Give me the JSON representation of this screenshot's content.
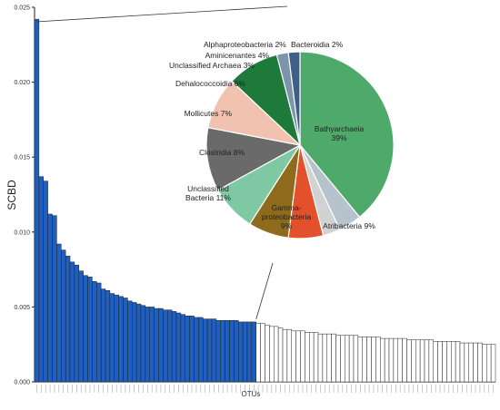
{
  "chart_data": [
    {
      "type": "bar",
      "xlabel": "OTUs",
      "ylabel": "SCBD",
      "ylim": [
        0,
        0.025
      ],
      "yticks": [
        "0.000",
        "0.005",
        "0.010",
        "0.015",
        "0.020",
        "0.025"
      ],
      "colors": {
        "highlighted": "#1f5fbf",
        "other": "#ffffff",
        "edge": "#222222"
      },
      "series": [
        {
          "values": [
            0.0242,
            0.0137,
            0.0134,
            0.0112,
            0.0111,
            0.0092,
            0.0088,
            0.0084,
            0.008,
            0.0078,
            0.0074,
            0.0071,
            0.007,
            0.0067,
            0.0066,
            0.0062,
            0.0061,
            0.0059,
            0.0058,
            0.0057,
            0.0056,
            0.0054,
            0.0053,
            0.0052,
            0.0051,
            0.005,
            0.005,
            0.0049,
            0.0049,
            0.0048,
            0.0048,
            0.0047,
            0.0046,
            0.0045,
            0.0044,
            0.0044,
            0.0043,
            0.0043,
            0.0042,
            0.0042,
            0.0042,
            0.0041,
            0.0041,
            0.0041,
            0.0041,
            0.0041,
            0.004,
            0.004,
            0.004,
            0.004,
            0.0039,
            0.0039,
            0.0038,
            0.0037,
            0.0037,
            0.0036,
            0.0035,
            0.0035,
            0.0034,
            0.0034,
            0.0034,
            0.0033,
            0.0033,
            0.0033,
            0.0032,
            0.0032,
            0.0032,
            0.0032,
            0.0031,
            0.0031,
            0.0031,
            0.0031,
            0.0031,
            0.003,
            0.003,
            0.003,
            0.003,
            0.003,
            0.0029,
            0.0029,
            0.0029,
            0.0029,
            0.0029,
            0.0029,
            0.0028,
            0.0028,
            0.0028,
            0.0028,
            0.0028,
            0.0028,
            0.0027,
            0.0027,
            0.0027,
            0.0027,
            0.0027,
            0.0027,
            0.0026,
            0.0026,
            0.0026,
            0.0026,
            0.0026,
            0.0025,
            0.0025,
            0.0025
          ],
          "highlighted_count": 50
        }
      ]
    },
    {
      "type": "pie",
      "slices": [
        {
          "label": "Bathyarchaeia 39%",
          "value": 39,
          "color": "#4daa6b"
        },
        {
          "label": "Aminicenantes 4%",
          "value": 4,
          "color": "#b7c3cc"
        },
        {
          "label": "Unclassified Archaea 3%",
          "value": 3,
          "color": "#d2d2d2"
        },
        {
          "label": "Dehalococcoidia 6%",
          "value": 6,
          "color": "#e2502c"
        },
        {
          "label": "Mollicutes 7%",
          "value": 7,
          "color": "#8e6b1c"
        },
        {
          "label": "Clostridia 8%",
          "value": 8,
          "color": "#7ec9a3"
        },
        {
          "label": "Unclassified Bacteria 11%",
          "value": 11,
          "color": "#6a6a6a"
        },
        {
          "label": "Gamma-proteobacteria 9%",
          "value": 9,
          "color": "#f2c2b0"
        },
        {
          "label": "Atribacteria 9%",
          "value": 9,
          "color": "#1e7a3a"
        },
        {
          "label": "Alphaproteobacteria 2%",
          "value": 2,
          "color": "#7b95ad"
        },
        {
          "label": "Bacteroidia 2%",
          "value": 2,
          "color": "#3f5f88"
        }
      ]
    }
  ]
}
